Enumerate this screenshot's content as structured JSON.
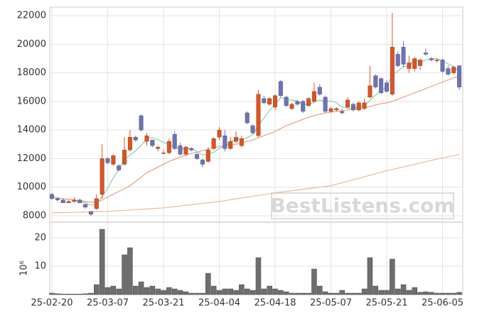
{
  "chart_data": [
    {
      "type": "candlestick",
      "categories": [
        "25-02-20",
        null,
        null,
        null,
        null,
        null,
        null,
        null,
        null,
        null,
        "25-03-07",
        null,
        null,
        null,
        null,
        null,
        null,
        null,
        null,
        null,
        "25-03-21",
        null,
        null,
        null,
        null,
        null,
        null,
        null,
        null,
        null,
        "25-04-04",
        null,
        null,
        null,
        null,
        null,
        null,
        null,
        null,
        null,
        "25-04-18",
        null,
        null,
        null,
        null,
        null,
        null,
        null,
        null,
        null,
        "25-05-07",
        null,
        null,
        null,
        null,
        null,
        null,
        null,
        null,
        null,
        "25-05-21",
        null,
        null,
        null,
        null,
        null,
        null,
        null,
        null,
        null,
        "25-06-05",
        null,
        null,
        null
      ],
      "open": [
        9500,
        9200,
        9100,
        8900,
        9000,
        9100,
        8800,
        8300,
        8500,
        9500,
        12000,
        11600,
        11500,
        11600,
        12600,
        13500,
        15000,
        13200,
        13300,
        12700,
        12400,
        12400,
        13700,
        12900,
        12300,
        12700,
        12300,
        11900,
        11800,
        12700,
        13500,
        13600,
        12700,
        13200,
        12900,
        15200,
        14300,
        13600,
        16200,
        15800,
        15600,
        17400,
        16300,
        15500,
        16000,
        16000,
        15700,
        16000,
        17000,
        16300,
        15300,
        15400,
        15300,
        15600,
        15800,
        15400,
        15500,
        16300,
        17800,
        17600,
        17300,
        16500,
        19300,
        19800,
        18300,
        18300,
        18500,
        19400,
        19000,
        18900,
        18900,
        18300,
        18000,
        18500
      ],
      "high": [
        9600,
        9300,
        9200,
        9100,
        9300,
        9200,
        8800,
        8300,
        9500,
        13000,
        12100,
        12300,
        11600,
        13500,
        14000,
        13600,
        15100,
        13800,
        13300,
        12900,
        12600,
        13400,
        13900,
        13100,
        12900,
        12800,
        12400,
        12000,
        12800,
        13500,
        14200,
        14000,
        13500,
        13900,
        13600,
        15300,
        14400,
        16800,
        16400,
        16300,
        16500,
        17500,
        16400,
        15900,
        16100,
        16100,
        16300,
        17300,
        17200,
        16400,
        15600,
        15600,
        15500,
        16300,
        15900,
        16000,
        16200,
        18500,
        17900,
        17700,
        17500,
        22200,
        19500,
        20200,
        19200,
        19100,
        19000,
        19700,
        19100,
        19000,
        19000,
        18500,
        18500,
        18500
      ],
      "low": [
        9100,
        9000,
        8900,
        8900,
        8900,
        8900,
        8500,
        8000,
        8400,
        9200,
        11600,
        11500,
        11100,
        11500,
        12500,
        13200,
        13900,
        12900,
        12800,
        12500,
        12300,
        12300,
        12600,
        12200,
        12200,
        12500,
        11900,
        11400,
        11700,
        12600,
        13300,
        12500,
        12600,
        13100,
        12800,
        14400,
        13700,
        13500,
        15800,
        15700,
        15400,
        16300,
        15600,
        15400,
        15700,
        15200,
        15600,
        15900,
        16400,
        15200,
        15200,
        15300,
        15100,
        15500,
        15300,
        15300,
        15400,
        16200,
        16900,
        16500,
        16600,
        16400,
        18400,
        18400,
        18000,
        18100,
        18200,
        19200,
        18800,
        18700,
        18000,
        17800,
        17900,
        16800
      ],
      "close": [
        9200,
        9100,
        8900,
        9000,
        9100,
        8900,
        8600,
        8100,
        9200,
        12000,
        11700,
        12200,
        11200,
        12600,
        13500,
        13300,
        14000,
        13600,
        12900,
        12800,
        12400,
        13200,
        12700,
        12300,
        12800,
        12600,
        12000,
        11600,
        12600,
        13400,
        14000,
        12700,
        13200,
        13500,
        13400,
        14500,
        13800,
        16500,
        15900,
        16200,
        16400,
        16400,
        15700,
        15800,
        15800,
        15300,
        16200,
        16700,
        16500,
        15300,
        15500,
        15500,
        15200,
        16100,
        15400,
        15900,
        15900,
        17100,
        17000,
        16600,
        16700,
        19800,
        18500,
        18600,
        18700,
        19000,
        18900,
        19300,
        18900,
        18900,
        18100,
        17900,
        18400,
        17000
      ],
      "up_color": "#e2501c",
      "down_color": "#6c72b8",
      "series": [
        {
          "color": "#8fd3b4",
          "values": [
            null,
            null,
            null,
            null,
            9060,
            9000,
            8900,
            8740,
            8780,
            9360,
            9920,
            10640,
            11260,
            11940,
            12240,
            12560,
            12920,
            13400,
            13460,
            13320,
            13140,
            12980,
            12800,
            12680,
            12680,
            12720,
            12480,
            12260,
            12320,
            12440,
            12720,
            12860,
            13180,
            13360,
            13360,
            13460,
            13680,
            14340,
            14820,
            15380,
            15760,
            16280,
            16120,
            16100,
            16020,
            15800,
            15760,
            15960,
            16100,
            16000,
            16040,
            15900,
            15600,
            15520,
            15540,
            15620,
            15700,
            16080,
            16460,
            16700,
            17060,
            17840,
            18120,
            18440,
            18460,
            18920,
            18740,
            18900,
            18960,
            19000,
            18820,
            18620,
            18440,
            18060
          ]
        },
        {
          "color": "#eaa686",
          "values": [
            9300,
            9250,
            9200,
            9150,
            9100,
            9050,
            9000,
            8950,
            8950,
            9100,
            9300,
            9500,
            9700,
            9900,
            10100,
            10400,
            10700,
            11000,
            11200,
            11400,
            11600,
            11800,
            11950,
            12100,
            12250,
            12350,
            12450,
            12550,
            12650,
            12750,
            12850,
            12900,
            12950,
            13000,
            13100,
            13200,
            13300,
            13450,
            13600,
            13750,
            13900,
            14100,
            14300,
            14450,
            14600,
            14750,
            14900,
            15000,
            15100,
            15200,
            15250,
            15300,
            15350,
            15400,
            15450,
            15500,
            15550,
            15650,
            15750,
            15850,
            15900,
            16000,
            16150,
            16300,
            16450,
            16600,
            16750,
            16900,
            17050,
            17200,
            17350,
            17500,
            17650,
            17800
          ]
        },
        {
          "color": "#ebbfa2",
          "values": [
            8200,
            8210,
            8220,
            8230,
            8240,
            8250,
            8260,
            8270,
            8280,
            8290,
            8300,
            8325,
            8350,
            8375,
            8400,
            8425,
            8450,
            8475,
            8500,
            8525,
            8550,
            8595,
            8640,
            8685,
            8730,
            8775,
            8820,
            8865,
            8910,
            8955,
            9000,
            9060,
            9120,
            9180,
            9240,
            9300,
            9360,
            9420,
            9480,
            9540,
            9600,
            9650,
            9700,
            9750,
            9800,
            9850,
            9900,
            9950,
            10000,
            10050,
            10100,
            10205,
            10310,
            10415,
            10520,
            10625,
            10730,
            10835,
            10940,
            11045,
            11150,
            11240,
            11330,
            11420,
            11510,
            11600,
            11690,
            11780,
            11870,
            11960,
            12050,
            12130,
            12210,
            12300
          ]
        }
      ],
      "ylim": [
        7600,
        22500
      ],
      "yticks": [
        8000,
        10000,
        12000,
        14000,
        16000,
        18000,
        20000,
        22000
      ],
      "grid": true,
      "watermark": "BestListens.com"
    },
    {
      "type": "bar",
      "values": [
        0.5,
        0.3,
        0.2,
        0.2,
        0.2,
        0.2,
        0.3,
        0.5,
        3.5,
        23,
        2.5,
        3,
        2,
        14,
        16.5,
        3,
        4.5,
        2.5,
        3,
        2,
        1.5,
        2.5,
        2,
        1.5,
        1,
        0.5,
        0.5,
        0.5,
        7.5,
        3,
        1.5,
        2,
        2,
        1.5,
        3.5,
        2,
        1.5,
        13,
        2,
        3,
        2,
        1.5,
        1,
        0.5,
        0.5,
        0.5,
        0.5,
        9,
        3,
        1,
        0.5,
        0.5,
        1.5,
        0.5,
        0.5,
        0.5,
        2,
        13,
        3,
        1.5,
        1.5,
        12.5,
        2,
        3.5,
        1.5,
        2.5,
        0.8,
        1,
        0.8,
        0.5,
        0.5,
        0.5,
        0.5,
        0.8
      ],
      "color": "#6e6e6e",
      "ylim": [
        0,
        25
      ],
      "yticks": [
        10,
        20
      ],
      "ylabel": "10⁶",
      "grid": true
    }
  ]
}
